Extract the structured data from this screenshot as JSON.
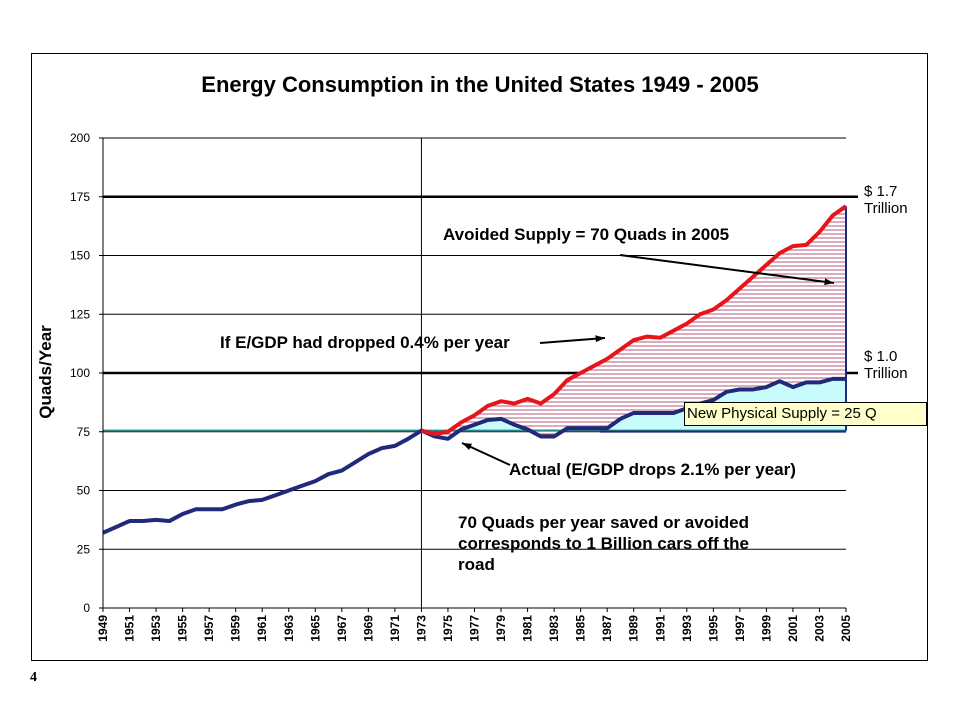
{
  "page_number": "4",
  "chart_data": {
    "type": "line",
    "title": "Energy Consumption in the United States 1949 - 2005",
    "xlabel": "",
    "ylabel": "Quads/Year",
    "ylim": [
      0,
      200
    ],
    "xlim": [
      1949,
      2005
    ],
    "yticks": [
      "0",
      "25",
      "50",
      "75",
      "100",
      "125",
      "150",
      "175",
      "200"
    ],
    "xticks": [
      "1949",
      "1951",
      "1953",
      "1955",
      "1957",
      "1959",
      "1961",
      "1963",
      "1965",
      "1967",
      "1969",
      "1971",
      "1973",
      "1975",
      "1977",
      "1979",
      "1981",
      "1983",
      "1985",
      "1987",
      "1989",
      "1991",
      "1993",
      "1995",
      "1997",
      "1999",
      "2001",
      "2003",
      "2005"
    ],
    "grid": true,
    "series": [
      {
        "key": "actual",
        "color": "#1f2a7a",
        "x": [
          1949,
          1950,
          1951,
          1952,
          1953,
          1954,
          1955,
          1956,
          1957,
          1958,
          1959,
          1960,
          1961,
          1962,
          1963,
          1964,
          1965,
          1966,
          1967,
          1968,
          1969,
          1970,
          1971,
          1972,
          1973,
          1974,
          1975,
          1976,
          1977,
          1978,
          1979,
          1980,
          1981,
          1982,
          1983,
          1984,
          1985,
          1986,
          1987,
          1988,
          1989,
          1990,
          1991,
          1992,
          1993,
          1994,
          1995,
          1996,
          1997,
          1998,
          1999,
          2000,
          2001,
          2002,
          2003,
          2004,
          2005
        ],
        "y": [
          32,
          34.5,
          37,
          37,
          37.5,
          37,
          40,
          42,
          42,
          42,
          44,
          45.5,
          46,
          48,
          50,
          52,
          54,
          57,
          58.5,
          62,
          65.5,
          68,
          69,
          72,
          75.5,
          73,
          72,
          76,
          78,
          80,
          80.5,
          78,
          76,
          73,
          73,
          76.5,
          76.5,
          76.5,
          76.5,
          80.5,
          83,
          83,
          83,
          83,
          85,
          87,
          88.5,
          92,
          93,
          93,
          94,
          96.5,
          94,
          96,
          96,
          97.5,
          97.5
        ]
      },
      {
        "key": "hypothetical",
        "label": "If E/GDP had dropped 0.4% per year",
        "color": "#e8141b",
        "x": [
          1973,
          1974,
          1975,
          1976,
          1977,
          1978,
          1979,
          1980,
          1981,
          1982,
          1983,
          1984,
          1985,
          1986,
          1987,
          1988,
          1989,
          1990,
          1991,
          1992,
          1993,
          1994,
          1995,
          1996,
          1997,
          1998,
          1999,
          2000,
          2001,
          2002,
          2003,
          2004,
          2005
        ],
        "y": [
          75.5,
          74,
          75,
          79,
          82,
          86,
          88,
          87,
          89,
          87,
          91,
          97,
          100,
          103,
          106,
          110,
          114,
          115.5,
          115,
          118,
          121,
          125,
          127,
          131,
          136,
          141,
          146,
          151,
          154,
          154.5,
          160,
          167,
          171
        ]
      }
    ],
    "reference_lines": [
      {
        "y": 175,
        "label": "$ 1.7\nTrillion"
      },
      {
        "y": 100,
        "label": "$ 1.0\nTrillion"
      },
      {
        "y": 75.5,
        "label": ""
      }
    ],
    "vertical_marker": {
      "x": 1973
    },
    "annotations": {
      "avoided": "Avoided Supply = 70 Quads in 2005",
      "hypothetical": "If E/GDP had dropped 0.4% per year",
      "actual": "Actual (E/GDP drops 2.1% per year)",
      "new_supply": "New Physical Supply = 25 Q",
      "saved_line1": "70 Quads per year saved or avoided",
      "saved_line2": "corresponds to 1 Billion cars off the",
      "saved_line3": "road"
    }
  }
}
